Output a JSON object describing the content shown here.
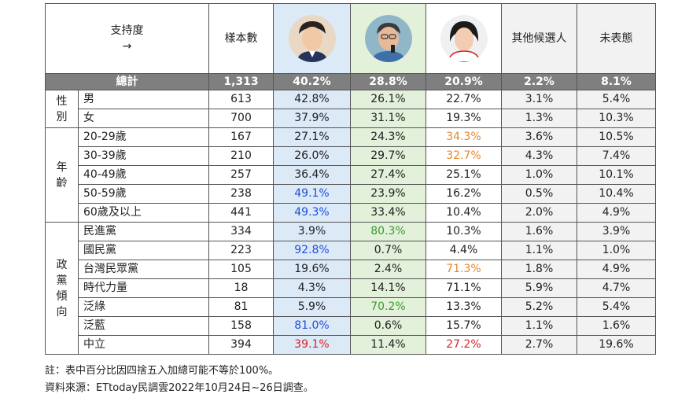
{
  "header": {
    "corner_line1": "支持度",
    "corner_line2": "→",
    "sample": "樣本數",
    "others": "其他候選人",
    "undecided": "未表態"
  },
  "candidate_icons": [
    "candidate-1-photo-icon",
    "candidate-2-photo-icon",
    "candidate-3-photo-icon"
  ],
  "total": {
    "label": "總計",
    "n": "1,313",
    "v": [
      "40.2%",
      "28.8%",
      "20.9%",
      "2.2%",
      "8.1%"
    ]
  },
  "groups": [
    {
      "label": "性別",
      "rows": [
        {
          "label": "男",
          "n": "613",
          "v": [
            "42.8%",
            "26.1%",
            "22.7%",
            "3.1%",
            "5.4%"
          ],
          "hl": [
            null,
            null,
            null
          ]
        },
        {
          "label": "女",
          "n": "700",
          "v": [
            "37.9%",
            "31.1%",
            "19.3%",
            "1.3%",
            "10.3%"
          ],
          "hl": [
            null,
            null,
            null
          ]
        }
      ]
    },
    {
      "label": "年齡",
      "rows": [
        {
          "label": "20-29歲",
          "n": "167",
          "v": [
            "27.1%",
            "24.3%",
            "34.3%",
            "3.6%",
            "10.5%"
          ],
          "hl": [
            null,
            null,
            "orange"
          ]
        },
        {
          "label": "30-39歲",
          "n": "210",
          "v": [
            "26.0%",
            "29.7%",
            "32.7%",
            "4.3%",
            "7.4%"
          ],
          "hl": [
            null,
            null,
            "orange"
          ]
        },
        {
          "label": "40-49歲",
          "n": "257",
          "v": [
            "36.4%",
            "27.4%",
            "25.1%",
            "1.0%",
            "10.1%"
          ],
          "hl": [
            null,
            null,
            null
          ]
        },
        {
          "label": "50-59歲",
          "n": "238",
          "v": [
            "49.1%",
            "23.9%",
            "16.2%",
            "0.5%",
            "10.4%"
          ],
          "hl": [
            "blue",
            null,
            null
          ]
        },
        {
          "label": "60歲及以上",
          "n": "441",
          "v": [
            "49.3%",
            "33.4%",
            "10.4%",
            "2.0%",
            "4.9%"
          ],
          "hl": [
            "blue",
            null,
            null
          ]
        }
      ]
    },
    {
      "label": "政黨傾向",
      "rows": [
        {
          "label": "民進黨",
          "n": "334",
          "v": [
            "3.9%",
            "80.3%",
            "10.3%",
            "1.6%",
            "3.9%"
          ],
          "hl": [
            null,
            "green",
            null
          ]
        },
        {
          "label": "國民黨",
          "n": "223",
          "v": [
            "92.8%",
            "0.7%",
            "4.4%",
            "1.1%",
            "1.0%"
          ],
          "hl": [
            "blue",
            null,
            null
          ]
        },
        {
          "label": "台灣民眾黨",
          "n": "105",
          "v": [
            "19.6%",
            "2.4%",
            "71.3%",
            "1.8%",
            "4.9%"
          ],
          "hl": [
            null,
            null,
            "orange"
          ]
        },
        {
          "label": "時代力量",
          "n": "18",
          "v": [
            "4.3%",
            "14.1%",
            "71.1%",
            "5.9%",
            "4.7%"
          ],
          "hl": [
            null,
            null,
            null
          ]
        },
        {
          "label": "泛綠",
          "n": "81",
          "v": [
            "5.9%",
            "70.2%",
            "13.3%",
            "5.2%",
            "5.4%"
          ],
          "hl": [
            null,
            "green",
            null
          ]
        },
        {
          "label": "泛藍",
          "n": "158",
          "v": [
            "81.0%",
            "0.6%",
            "15.7%",
            "1.1%",
            "1.6%"
          ],
          "hl": [
            "blue",
            null,
            null
          ]
        },
        {
          "label": "中立",
          "n": "394",
          "v": [
            "39.1%",
            "11.4%",
            "27.2%",
            "2.7%",
            "19.6%"
          ],
          "hl": [
            "red",
            null,
            "red"
          ]
        }
      ]
    }
  ],
  "notes": [
    "註：表中百分比因四捨五入加總可能不等於100%。",
    "資料來源：ETtoday民調雲2022年10月24日~26日調查。"
  ],
  "chart_data": {
    "type": "table",
    "columns": [
      "樣本數",
      "candidate-1",
      "candidate-2",
      "candidate-3",
      "其他候選人",
      "未表態"
    ],
    "rows": [
      {
        "group": "",
        "label": "總計",
        "values": [
          "1,313",
          "40.2%",
          "28.8%",
          "20.9%",
          "2.2%",
          "8.1%"
        ]
      },
      {
        "group": "性別",
        "label": "男",
        "values": [
          "613",
          "42.8%",
          "26.1%",
          "22.7%",
          "3.1%",
          "5.4%"
        ]
      },
      {
        "group": "性別",
        "label": "女",
        "values": [
          "700",
          "37.9%",
          "31.1%",
          "19.3%",
          "1.3%",
          "10.3%"
        ]
      },
      {
        "group": "年齡",
        "label": "20-29歲",
        "values": [
          "167",
          "27.1%",
          "24.3%",
          "34.3%",
          "3.6%",
          "10.5%"
        ]
      },
      {
        "group": "年齡",
        "label": "30-39歲",
        "values": [
          "210",
          "26.0%",
          "29.7%",
          "32.7%",
          "4.3%",
          "7.4%"
        ]
      },
      {
        "group": "年齡",
        "label": "40-49歲",
        "values": [
          "257",
          "36.4%",
          "27.4%",
          "25.1%",
          "1.0%",
          "10.1%"
        ]
      },
      {
        "group": "年齡",
        "label": "50-59歲",
        "values": [
          "238",
          "49.1%",
          "23.9%",
          "16.2%",
          "0.5%",
          "10.4%"
        ]
      },
      {
        "group": "年齡",
        "label": "60歲及以上",
        "values": [
          "441",
          "49.3%",
          "33.4%",
          "10.4%",
          "2.0%",
          "4.9%"
        ]
      },
      {
        "group": "政黨傾向",
        "label": "民進黨",
        "values": [
          "334",
          "3.9%",
          "80.3%",
          "10.3%",
          "1.6%",
          "3.9%"
        ]
      },
      {
        "group": "政黨傾向",
        "label": "國民黨",
        "values": [
          "223",
          "92.8%",
          "0.7%",
          "4.4%",
          "1.1%",
          "1.0%"
        ]
      },
      {
        "group": "政黨傾向",
        "label": "台灣民眾黨",
        "values": [
          "105",
          "19.6%",
          "2.4%",
          "71.3%",
          "1.8%",
          "4.9%"
        ]
      },
      {
        "group": "政黨傾向",
        "label": "時代力量",
        "values": [
          "18",
          "4.3%",
          "14.1%",
          "71.1%",
          "5.9%",
          "4.7%"
        ]
      },
      {
        "group": "政黨傾向",
        "label": "泛綠",
        "values": [
          "81",
          "5.9%",
          "70.2%",
          "13.3%",
          "5.2%",
          "5.4%"
        ]
      },
      {
        "group": "政黨傾向",
        "label": "泛藍",
        "values": [
          "158",
          "81.0%",
          "0.6%",
          "15.7%",
          "1.1%",
          "1.6%"
        ]
      },
      {
        "group": "政黨傾向",
        "label": "中立",
        "values": [
          "394",
          "39.1%",
          "11.4%",
          "27.2%",
          "2.7%",
          "19.6%"
        ]
      }
    ]
  },
  "colors": {
    "blue": "#1f4fd8",
    "green": "#3a9b2f",
    "orange": "#e8862a",
    "red": "#d62728",
    "total_bg": "#7f7f7f",
    "col1_bg": "#dce9f7",
    "col2_bg": "#e3f0da"
  }
}
